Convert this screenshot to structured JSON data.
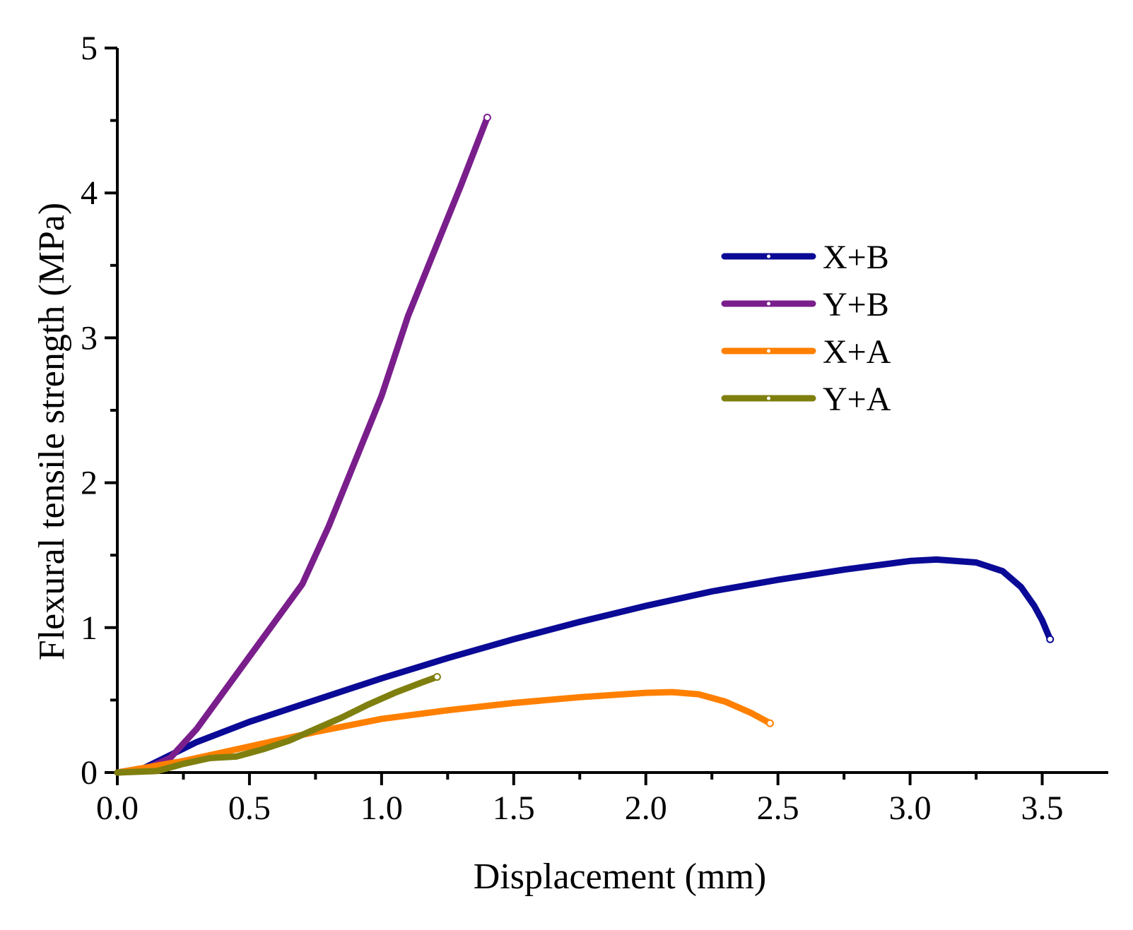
{
  "chart_data": {
    "type": "line",
    "title": "",
    "xlabel": "Displacement (mm)",
    "ylabel": "Flexural tensile strength (MPa)",
    "xlim": [
      0,
      3.75
    ],
    "ylim": [
      0,
      5
    ],
    "xticks": [
      0,
      0.5,
      1,
      1.5,
      2,
      2.5,
      3,
      3.5
    ],
    "xtick_labels": [
      "0.0",
      "0.5",
      "1.0",
      "1.5",
      "2.0",
      "2.5",
      "3.0",
      "3.5"
    ],
    "yticks": [
      0,
      1,
      2,
      3,
      4,
      5
    ],
    "ytick_labels": [
      "0",
      "1",
      "2",
      "3",
      "4",
      "5"
    ],
    "grid": false,
    "legend_position": "right-center",
    "series": [
      {
        "name": "X+B",
        "color": "#0a0a96",
        "marker": "square",
        "points": [
          [
            0,
            0
          ],
          [
            0.1,
            0.03
          ],
          [
            0.2,
            0.12
          ],
          [
            0.3,
            0.21
          ],
          [
            0.5,
            0.35
          ],
          [
            0.75,
            0.5
          ],
          [
            1.0,
            0.65
          ],
          [
            1.25,
            0.79
          ],
          [
            1.5,
            0.92
          ],
          [
            1.75,
            1.04
          ],
          [
            2.0,
            1.15
          ],
          [
            2.25,
            1.25
          ],
          [
            2.5,
            1.33
          ],
          [
            2.75,
            1.4
          ],
          [
            3.0,
            1.46
          ],
          [
            3.1,
            1.47
          ],
          [
            3.25,
            1.45
          ],
          [
            3.35,
            1.39
          ],
          [
            3.42,
            1.28
          ],
          [
            3.47,
            1.15
          ],
          [
            3.5,
            1.05
          ],
          [
            3.53,
            0.92
          ]
        ]
      },
      {
        "name": "Y+B",
        "color": "#7a1e8c",
        "marker": "circle",
        "points": [
          [
            0,
            0
          ],
          [
            0.1,
            0.02
          ],
          [
            0.2,
            0.1
          ],
          [
            0.3,
            0.3
          ],
          [
            0.4,
            0.55
          ],
          [
            0.5,
            0.8
          ],
          [
            0.6,
            1.05
          ],
          [
            0.7,
            1.3
          ],
          [
            0.8,
            1.7
          ],
          [
            0.9,
            2.15
          ],
          [
            1.0,
            2.6
          ],
          [
            1.1,
            3.15
          ],
          [
            1.2,
            3.6
          ],
          [
            1.3,
            4.05
          ],
          [
            1.4,
            4.52
          ]
        ]
      },
      {
        "name": "X+A",
        "color": "#ff8000",
        "marker": "triangle",
        "points": [
          [
            0,
            0
          ],
          [
            0.25,
            0.08
          ],
          [
            0.5,
            0.18
          ],
          [
            0.75,
            0.28
          ],
          [
            1.0,
            0.37
          ],
          [
            1.25,
            0.43
          ],
          [
            1.5,
            0.48
          ],
          [
            1.75,
            0.52
          ],
          [
            2.0,
            0.55
          ],
          [
            2.1,
            0.555
          ],
          [
            2.2,
            0.54
          ],
          [
            2.3,
            0.49
          ],
          [
            2.4,
            0.41
          ],
          [
            2.47,
            0.34
          ]
        ]
      },
      {
        "name": "Y+A",
        "color": "#7f7f0f",
        "marker": "star",
        "points": [
          [
            0,
            0
          ],
          [
            0.15,
            0.01
          ],
          [
            0.25,
            0.06
          ],
          [
            0.35,
            0.1
          ],
          [
            0.45,
            0.11
          ],
          [
            0.55,
            0.16
          ],
          [
            0.65,
            0.22
          ],
          [
            0.75,
            0.3
          ],
          [
            0.85,
            0.38
          ],
          [
            0.95,
            0.47
          ],
          [
            1.05,
            0.55
          ],
          [
            1.15,
            0.62
          ],
          [
            1.21,
            0.66
          ]
        ]
      }
    ]
  }
}
